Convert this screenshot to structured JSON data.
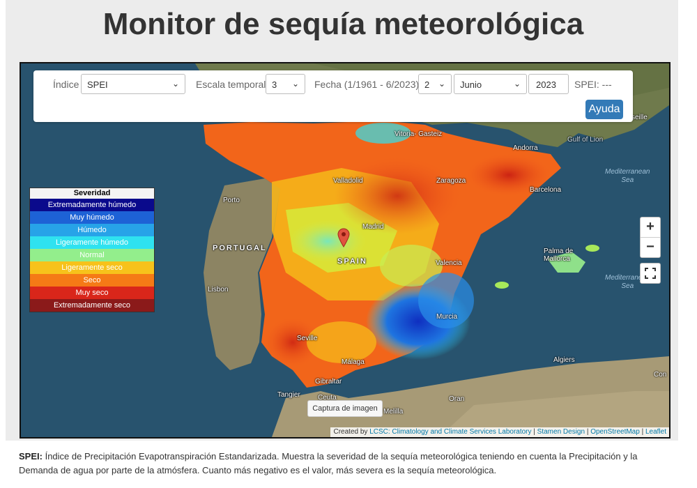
{
  "page": {
    "title": "Monitor de sequía meteorológica"
  },
  "controls": {
    "index_label": "Índice",
    "index_value": "SPEI",
    "scale_label": "Escala temporal",
    "scale_value": "3",
    "date_label": "Fecha (1/1961 - 6/2023)",
    "day_value": "2",
    "month_value": "Junio",
    "year_value": "2023",
    "spei_readout": "SPEI: ---",
    "help_label": "Ayuda"
  },
  "legend": {
    "title": "Severidad",
    "items": [
      {
        "label": "Extremadamente húmedo",
        "color": "#0a0a8c"
      },
      {
        "label": "Muy húmedo",
        "color": "#1d62d6"
      },
      {
        "label": "Húmedo",
        "color": "#27a3e8"
      },
      {
        "label": "Ligeramente húmedo",
        "color": "#2fe2f0"
      },
      {
        "label": "Normal",
        "color": "#93ee8c"
      },
      {
        "label": "Ligeramente seco",
        "color": "#f7c21b"
      },
      {
        "label": "Seco",
        "color": "#f57a16"
      },
      {
        "label": "Muy seco",
        "color": "#d9261a"
      },
      {
        "label": "Extremadamente seco",
        "color": "#8b1a1a"
      }
    ]
  },
  "map": {
    "zoom_in": "+",
    "zoom_out": "−",
    "fullscreen_icon": "fullscreen-icon",
    "capture_label": "Captura de imagen",
    "attribution": {
      "prefix": "Created by",
      "lcsc": "LCSC: Climatology and Climate Services Laboratory",
      "stamen": "Stamen Design",
      "osm": "OpenStreetMap",
      "leaflet": "Leaflet"
    },
    "places": {
      "vitoria": "Vitoria-\nGasteiz",
      "andorra": "Andorra",
      "gulf_lion": "Gulf of Lion",
      "marseille": "seille",
      "valladolid": "Valladolid",
      "zaragoza": "Zaragoza",
      "barcelona": "Barcelona",
      "porto": "Porto",
      "madrid": "Madrid",
      "portugal": "PORTUGAL",
      "spain": "SPAIN",
      "palma": "Palma de\nMallorca",
      "valencia": "Valencia",
      "lisbon": "Lisbon",
      "murcia": "Murcia",
      "seville": "Seville",
      "malaga": "Málaga",
      "algiers": "Algiers",
      "gibraltar": "Gibraltar",
      "tangier": "Tangier",
      "ceuta": "Ceuta",
      "oran": "Oran",
      "melilla": "Melilla",
      "con": "Con",
      "med1": "Mediterranean\nSea",
      "med2": "Mediterranean\nSea"
    }
  },
  "description": {
    "term": "SPEI:",
    "text": " Índice de Precipitación Evapotranspiración Estandarizada. Muestra la severidad de la sequía meteorológica teniendo en cuenta la Precipitación y la Demanda de agua por parte de la atmósfera. Cuanto más negativo es el valor, más severa es la sequía meteorológica."
  }
}
